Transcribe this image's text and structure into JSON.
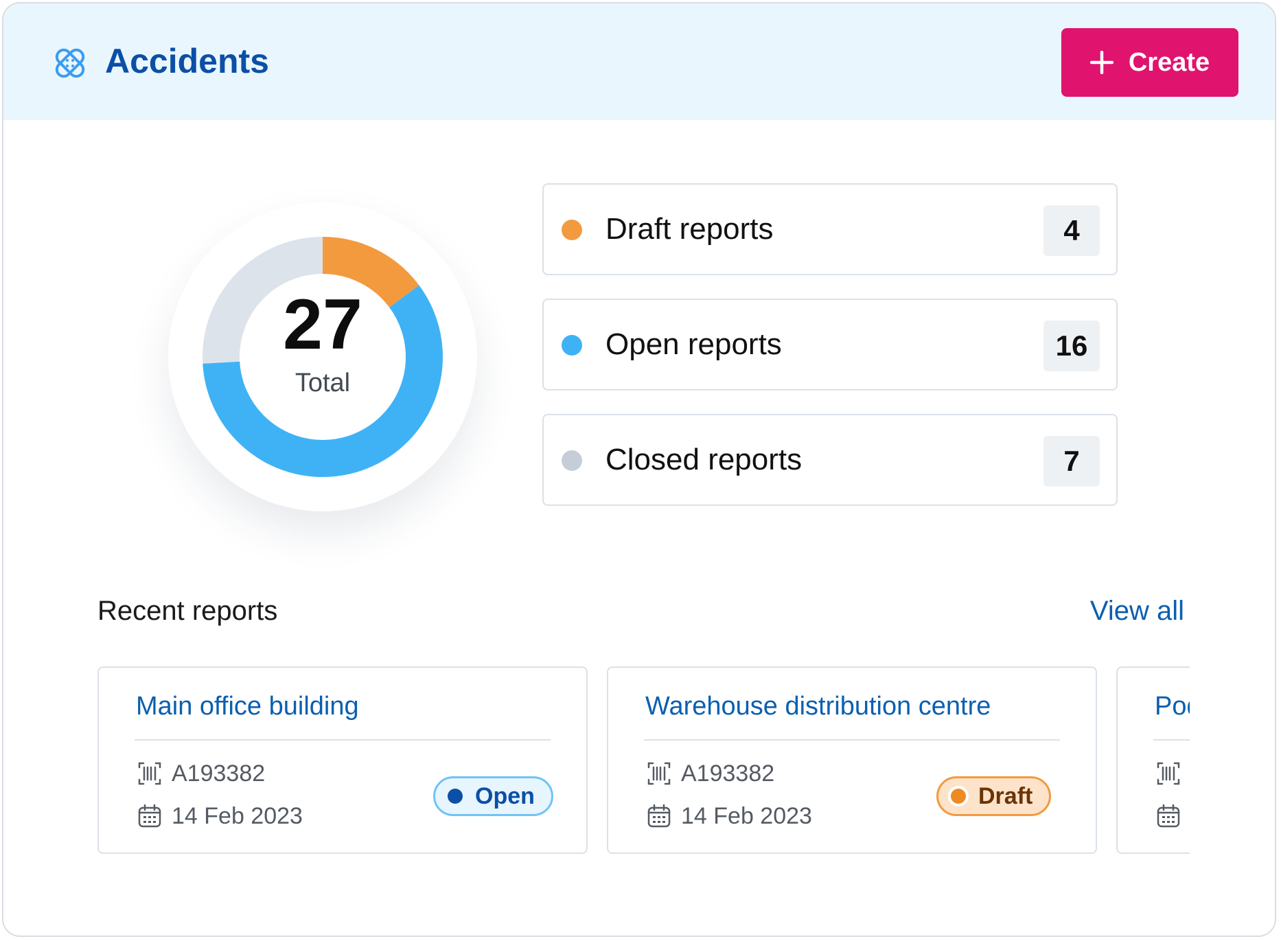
{
  "header": {
    "title": "Accidents",
    "icon": "bandage-icon",
    "create_label": "Create"
  },
  "summary": {
    "total_value": "27",
    "total_label": "Total",
    "stats": [
      {
        "label": "Draft reports",
        "count": "4",
        "color": "#f39a3f"
      },
      {
        "label": "Open reports",
        "count": "16",
        "color": "#3fb2f6"
      },
      {
        "label": "Closed reports",
        "count": "7",
        "color": "#c5ced8"
      }
    ]
  },
  "chart_data": {
    "type": "pie",
    "donut": true,
    "categories": [
      "Draft reports",
      "Open reports",
      "Closed reports"
    ],
    "values": [
      4,
      16,
      7
    ],
    "colors": [
      "#f39a3f",
      "#3fb2f6",
      "#dce3eb"
    ],
    "center_value": "27",
    "center_label": "Total"
  },
  "recent": {
    "title": "Recent reports",
    "view_all_label": "View all",
    "reports": [
      {
        "title": "Main office building",
        "id": "A193382",
        "date": "14 Feb 2023",
        "status": "Open"
      },
      {
        "title": "Warehouse distribution centre",
        "id": "A193382",
        "date": "14 Feb 2023",
        "status": "Draft"
      },
      {
        "title": "Pod",
        "id": "",
        "date": "",
        "status": ""
      }
    ]
  },
  "colors": {
    "brand": "#0b4fa6",
    "accent": "#e0136f",
    "link": "#0b5fb0",
    "header_bg": "#eaf6fd"
  }
}
